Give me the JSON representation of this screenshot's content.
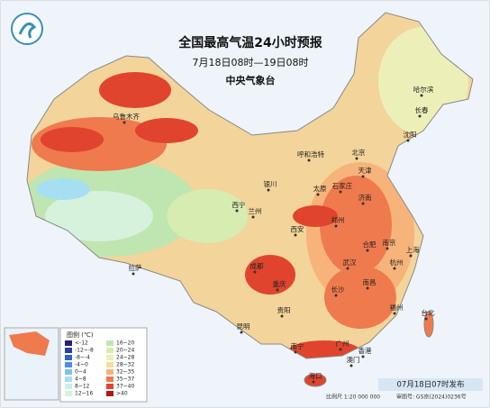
{
  "header": {
    "title": "全国最高气温24小时预报",
    "subtitle": "7月18日08时—19日08时",
    "agency": "中央气象台"
  },
  "cities": [
    "乌鲁木齐",
    "哈尔滨",
    "长春",
    "沈阳",
    "呼和浩特",
    "北京",
    "天津",
    "银川",
    "太原",
    "石家庄",
    "济南",
    "西宁",
    "兰州",
    "郑州",
    "西安",
    "合肥",
    "南京",
    "上海",
    "武汉",
    "杭州",
    "拉萨",
    "成都",
    "重庆",
    "长沙",
    "南昌",
    "福州",
    "贵阳",
    "台北",
    "昆明",
    "广州",
    "南宁",
    "香港",
    "澳门",
    "海口"
  ],
  "legend": {
    "title": "图例 (℃)",
    "items": [
      {
        "label": "<-12",
        "color": "#2a1a7a"
      },
      {
        "label": "-12~-8",
        "color": "#2a3f9e"
      },
      {
        "label": "-8~-4",
        "color": "#2f64c2"
      },
      {
        "label": "-4~0",
        "color": "#4a8ee0"
      },
      {
        "label": "0~4",
        "color": "#7fc2ee"
      },
      {
        "label": "4~8",
        "color": "#a7dff2"
      },
      {
        "label": "8~12",
        "color": "#c8eef0"
      },
      {
        "label": "12~16",
        "color": "#d6f2dc"
      },
      {
        "label": "16~20",
        "color": "#bfe6b0"
      },
      {
        "label": "20~24",
        "color": "#d6ecb0"
      },
      {
        "label": "24~28",
        "color": "#ecf0b8"
      },
      {
        "label": "28~32",
        "color": "#f7dca0"
      },
      {
        "label": "32~35",
        "color": "#f6b47a"
      },
      {
        "label": "35~37",
        "color": "#ef7a4e"
      },
      {
        "label": "37~40",
        "color": "#e0442e"
      },
      {
        "label": ">40",
        "color": "#b01818"
      }
    ]
  },
  "footer": {
    "issued": "07月18日07时发布",
    "scale": "比例尺 1:20 000 000",
    "approval": "审图号: GS京(2024)0236号"
  }
}
